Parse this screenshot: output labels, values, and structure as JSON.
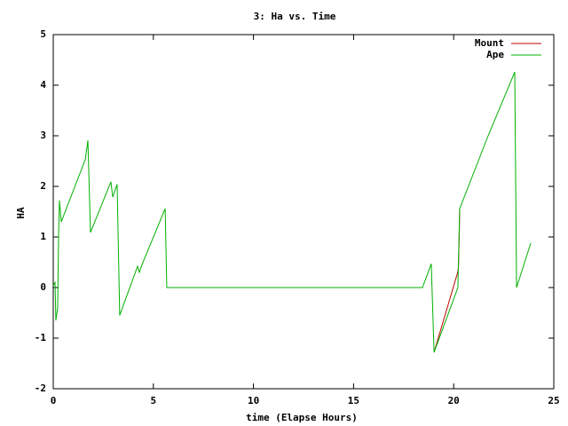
{
  "chart_data": {
    "type": "line",
    "title": "3: Ha vs. Time",
    "x_label": "time (Elapse Hours)",
    "y_label": "HA",
    "xlim": [
      0,
      25
    ],
    "ylim": [
      -2,
      5
    ],
    "xticks": [
      0,
      5,
      10,
      15,
      20,
      25
    ],
    "yticks": [
      -2,
      -1,
      0,
      1,
      2,
      3,
      4,
      5
    ],
    "legend": "top-right",
    "series": [
      {
        "name": "Mount",
        "color": "#c00000",
        "x": [
          19.02,
          20.2,
          20.24,
          20.28,
          20.3
        ],
        "values": [
          -1.28,
          0.3,
          0.4,
          1.1,
          1.56
        ]
      },
      {
        "name": "Ape",
        "color": "#00b000",
        "x": [
          0,
          0.09,
          0.13,
          0.22,
          0.27,
          0.31,
          0.4,
          1.6,
          1.73,
          1.86,
          2.88,
          2.97,
          3.19,
          3.32,
          4.21,
          4.3,
          4.43,
          5.59,
          5.67,
          18.44,
          18.88,
          19.02,
          20.21,
          20.3,
          21.72,
          23.05,
          23.14,
          23.85
        ],
        "values": [
          0.04,
          0.1,
          -0.65,
          -0.4,
          1.12,
          1.72,
          1.3,
          2.53,
          2.91,
          1.09,
          2.09,
          1.79,
          2.04,
          -0.55,
          0.42,
          0.3,
          0.45,
          1.56,
          0,
          0,
          0.47,
          -1.28,
          0,
          1.56,
          3.0,
          4.26,
          0,
          0.88
        ]
      }
    ]
  }
}
